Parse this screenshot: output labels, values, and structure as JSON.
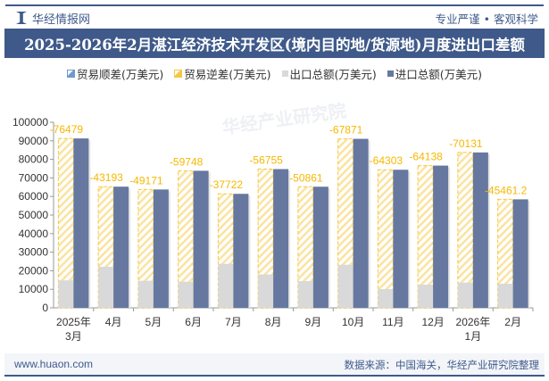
{
  "header": {
    "brand": "华经情报网",
    "slogan": "专业严谨 • 客观科学",
    "title": "2025-2026年2月湛江经济技术开发区(境内目的地/货源地)月度进出口差额"
  },
  "footer": {
    "website": "www.huaon.com",
    "source": "数据来源：中国海关，华经产业研究院整理"
  },
  "watermark": "华经产业研究院",
  "colors": {
    "brand": "#3f5a8a",
    "surplus": "#6d9ad0",
    "deficit": "#f5c842",
    "export": "#d9d9d9",
    "import": "#66789f"
  },
  "chart_data": {
    "type": "bar",
    "title": "2025-2026年2月湛江经济技术开发区(境内目的地/货源地)月度进出口差额",
    "categories": [
      "2025年\n3月",
      "4月",
      "5月",
      "6月",
      "7月",
      "8月",
      "9月",
      "10月",
      "11月",
      "12月",
      "2026年\n1月",
      "2月"
    ],
    "legend": [
      "贸易顺差(万美元)",
      "贸易逆差(万美元)",
      "出口总额(万美元)",
      "进口总额(万美元)"
    ],
    "legend_placement": "top",
    "ylim": [
      0,
      100000
    ],
    "yticks": [
      0,
      10000,
      20000,
      30000,
      40000,
      50000,
      60000,
      70000,
      80000,
      90000,
      100000
    ],
    "grid": false,
    "series": [
      {
        "name": "贸易逆差(万美元)",
        "values": [
          -76479,
          -43193,
          -49171,
          -59748,
          -37722,
          -56755,
          -50861,
          -67871,
          -64303,
          -64138,
          -70131,
          -45461.2
        ],
        "labels": [
          "-76479",
          "-43193",
          "-49171",
          "-59748",
          "-37722",
          "-56755",
          "-50861",
          "-67871",
          "-64303",
          "-64138",
          "-70131",
          "-45461.2"
        ]
      },
      {
        "name": "出口总额(万美元)",
        "values": [
          14800,
          22100,
          14600,
          14100,
          23700,
          18000,
          14400,
          23200,
          10100,
          12500,
          13600,
          13000
        ]
      },
      {
        "name": "进口总额(万美元)",
        "values": [
          91279,
          65293,
          63771,
          73848,
          61422,
          74755,
          65261,
          91071,
          74403,
          76638,
          83731,
          58461
        ]
      }
    ]
  }
}
